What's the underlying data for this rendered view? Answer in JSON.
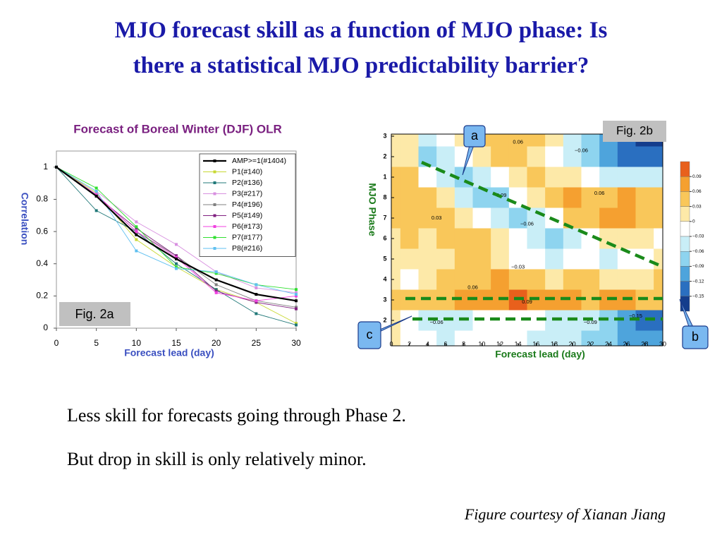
{
  "title": [
    "MJO forecast skill as a function of MJO phase: Is",
    "there a statistical MJO predictability barrier?"
  ],
  "chart_data": [
    {
      "type": "line",
      "title": "Forecast of Boreal Winter (DJF) OLR",
      "xlabel": "Forecast lead (day)",
      "ylabel": "Correlation",
      "annotation": "Fig. 2a",
      "x": [
        0,
        5,
        10,
        15,
        20,
        25,
        30
      ],
      "xlim": [
        0,
        30
      ],
      "xticks": [
        0,
        5,
        10,
        15,
        20,
        25,
        30
      ],
      "ylim": [
        0,
        1.1
      ],
      "yticks": [
        0,
        0.2,
        0.4,
        0.6,
        0.8,
        1
      ],
      "legend": "upper right",
      "series": [
        {
          "name": "AMP>=1(#1404)",
          "color": "#000000",
          "values": [
            1,
            0.82,
            0.58,
            0.43,
            0.3,
            0.21,
            0.17
          ]
        },
        {
          "name": "P1(#140)",
          "color": "#c8d832",
          "values": [
            1,
            0.84,
            0.55,
            0.38,
            0.24,
            0.16,
            0.03
          ]
        },
        {
          "name": "P2(#136)",
          "color": "#207878",
          "values": [
            1,
            0.73,
            0.6,
            0.4,
            0.24,
            0.09,
            0.02
          ]
        },
        {
          "name": "P3(#217)",
          "color": "#d890e0",
          "values": [
            1,
            0.85,
            0.66,
            0.52,
            0.35,
            0.25,
            0.22
          ]
        },
        {
          "name": "P4(#196)",
          "color": "#808080",
          "values": [
            1,
            0.83,
            0.6,
            0.45,
            0.27,
            0.17,
            0.13
          ]
        },
        {
          "name": "P5(#149)",
          "color": "#802080",
          "values": [
            1,
            0.82,
            0.62,
            0.45,
            0.23,
            0.16,
            0.12
          ]
        },
        {
          "name": "P6(#173)",
          "color": "#f040e0",
          "values": [
            1,
            0.83,
            0.6,
            0.44,
            0.22,
            0.17,
            0.2
          ]
        },
        {
          "name": "P7(#177)",
          "color": "#30e030",
          "values": [
            1,
            0.87,
            0.63,
            0.38,
            0.34,
            0.27,
            0.24
          ]
        },
        {
          "name": "P8(#216)",
          "color": "#60c0f0",
          "values": [
            1,
            0.85,
            0.48,
            0.37,
            0.35,
            0.27,
            0.21
          ]
        }
      ]
    },
    {
      "type": "contour",
      "xlabel": "Forecast lead (day)",
      "ylabel": "MJO Phase",
      "annotation": "Fig. 2b",
      "callouts": [
        "a",
        "b",
        "c"
      ],
      "x": [
        0,
        2,
        4,
        6,
        8,
        10,
        12,
        14,
        16,
        18,
        20,
        22,
        24,
        26,
        28,
        30
      ],
      "y": [
        9,
        8,
        7,
        6,
        5,
        4,
        3,
        2,
        1,
        0,
        -1
      ],
      "z": [
        [
          0.0,
          0.02,
          -0.04,
          -0.03,
          0.0,
          0.03,
          0.04,
          0.05,
          0.03,
          0.0,
          -0.04,
          -0.08,
          -0.12,
          -0.15,
          -0.17,
          -0.16
        ],
        [
          0.02,
          0.0,
          -0.07,
          -0.06,
          -0.02,
          0.02,
          0.04,
          0.03,
          0.01,
          -0.02,
          -0.05,
          -0.09,
          -0.12,
          -0.14,
          -0.15,
          -0.13
        ],
        [
          0.03,
          0.03,
          -0.02,
          -0.06,
          -0.08,
          -0.06,
          -0.02,
          0.01,
          0.03,
          0.02,
          0.0,
          -0.02,
          -0.04,
          -0.05,
          -0.06,
          -0.05
        ],
        [
          0.04,
          0.04,
          0.03,
          0.0,
          -0.04,
          -0.09,
          -0.07,
          -0.03,
          0.0,
          0.04,
          0.06,
          0.04,
          0.05,
          0.06,
          0.05,
          0.04
        ],
        [
          0.03,
          0.04,
          0.04,
          0.03,
          0.02,
          -0.02,
          -0.05,
          -0.07,
          -0.05,
          -0.02,
          0.03,
          0.05,
          0.06,
          0.07,
          0.05,
          0.03
        ],
        [
          0.02,
          0.03,
          0.02,
          0.04,
          0.04,
          0.03,
          0.0,
          -0.03,
          -0.06,
          -0.07,
          -0.05,
          -0.03,
          0.0,
          0.02,
          0.0,
          -0.02
        ],
        [
          0.0,
          0.01,
          0.0,
          0.02,
          0.03,
          0.03,
          0.02,
          -0.01,
          -0.03,
          -0.04,
          -0.03,
          -0.02,
          -0.04,
          -0.03,
          -0.02,
          0.0
        ],
        [
          0.0,
          -0.02,
          0.02,
          0.03,
          0.04,
          0.05,
          0.06,
          0.04,
          0.03,
          0.02,
          0.04,
          0.03,
          0.02,
          0.01,
          0.02,
          0.03
        ],
        [
          0.03,
          0.03,
          0.03,
          0.04,
          0.06,
          0.07,
          0.08,
          0.09,
          0.08,
          0.07,
          0.06,
          0.04,
          0.06,
          0.06,
          0.05,
          0.04
        ],
        [
          0.0,
          -0.02,
          -0.05,
          -0.06,
          -0.04,
          -0.02,
          -0.03,
          -0.02,
          -0.03,
          -0.05,
          -0.06,
          -0.06,
          -0.08,
          -0.1,
          -0.13,
          -0.14
        ],
        [
          0.0,
          -0.01,
          -0.03,
          -0.04,
          -0.03,
          -0.02,
          -0.02,
          -0.03,
          -0.04,
          -0.05,
          -0.06,
          -0.08,
          -0.09,
          -0.1,
          -0.11,
          -0.1
        ]
      ],
      "xlim": [
        0,
        30
      ],
      "xticks": [
        0,
        2,
        4,
        6,
        8,
        10,
        12,
        14,
        16,
        18,
        20,
        22,
        24,
        26,
        28,
        30
      ],
      "ylim": [
        -1,
        9
      ],
      "yticks": [
        {
          "value": 0,
          "label": "2"
        },
        {
          "value": 1,
          "label": "3"
        },
        {
          "value": 2,
          "label": "4"
        },
        {
          "value": 3,
          "label": "5"
        },
        {
          "value": 4,
          "label": "6"
        },
        {
          "value": 5,
          "label": "7"
        },
        {
          "value": 6,
          "label": "8"
        },
        {
          "value": 7,
          "label": "1"
        },
        {
          "value": 8,
          "label": "2"
        },
        {
          "value": 9,
          "label": "3"
        }
      ],
      "colorbar": {
        "ticks": [
          0.09,
          0.06,
          0.03,
          0,
          {
            "value": -0.03,
            "label": "−0.03"
          },
          {
            "value": -0.06,
            "label": "−0.06"
          },
          {
            "value": -0.09,
            "label": "−0.09"
          },
          {
            "value": -0.12,
            "label": "−0.12"
          },
          {
            "value": -0.15,
            "label": "−0.15"
          }
        ],
        "colors": [
          "#e8601c",
          "#f5a030",
          "#f9c75a",
          "#fde9a8",
          "#ffffff",
          "#c9eef7",
          "#8ed4ef",
          "#4ea4dc",
          "#2a6fc0",
          "#143d8c"
        ]
      },
      "contour_labels": [
        {
          "text": "0.06",
          "x": 14,
          "y": 8.7
        },
        {
          "text": "−0.06",
          "x": 21,
          "y": 8.3
        },
        {
          "text": "−0.09",
          "x": 12,
          "y": 6.1
        },
        {
          "text": "0.03",
          "x": 5,
          "y": 5.0
        },
        {
          "text": "0.06",
          "x": 23,
          "y": 6.2
        },
        {
          "text": "−0.06",
          "x": 15,
          "y": 4.7
        },
        {
          "text": "−0.03",
          "x": 14,
          "y": 2.6
        },
        {
          "text": "0.06",
          "x": 9,
          "y": 1.6
        },
        {
          "text": "0.09",
          "x": 15,
          "y": 0.9
        },
        {
          "text": "−0.06",
          "x": 5,
          "y": -0.1
        },
        {
          "text": "−0.09",
          "x": 22,
          "y": -0.1
        },
        {
          "text": "−0.15",
          "x": 27,
          "y": 0.2
        }
      ]
    }
  ],
  "body": {
    "lines": [
      "Less skill for forecasts going through Phase 2.",
      "But drop in skill is only relatively minor."
    ],
    "credit": "Figure courtesy of Xianan Jiang"
  }
}
